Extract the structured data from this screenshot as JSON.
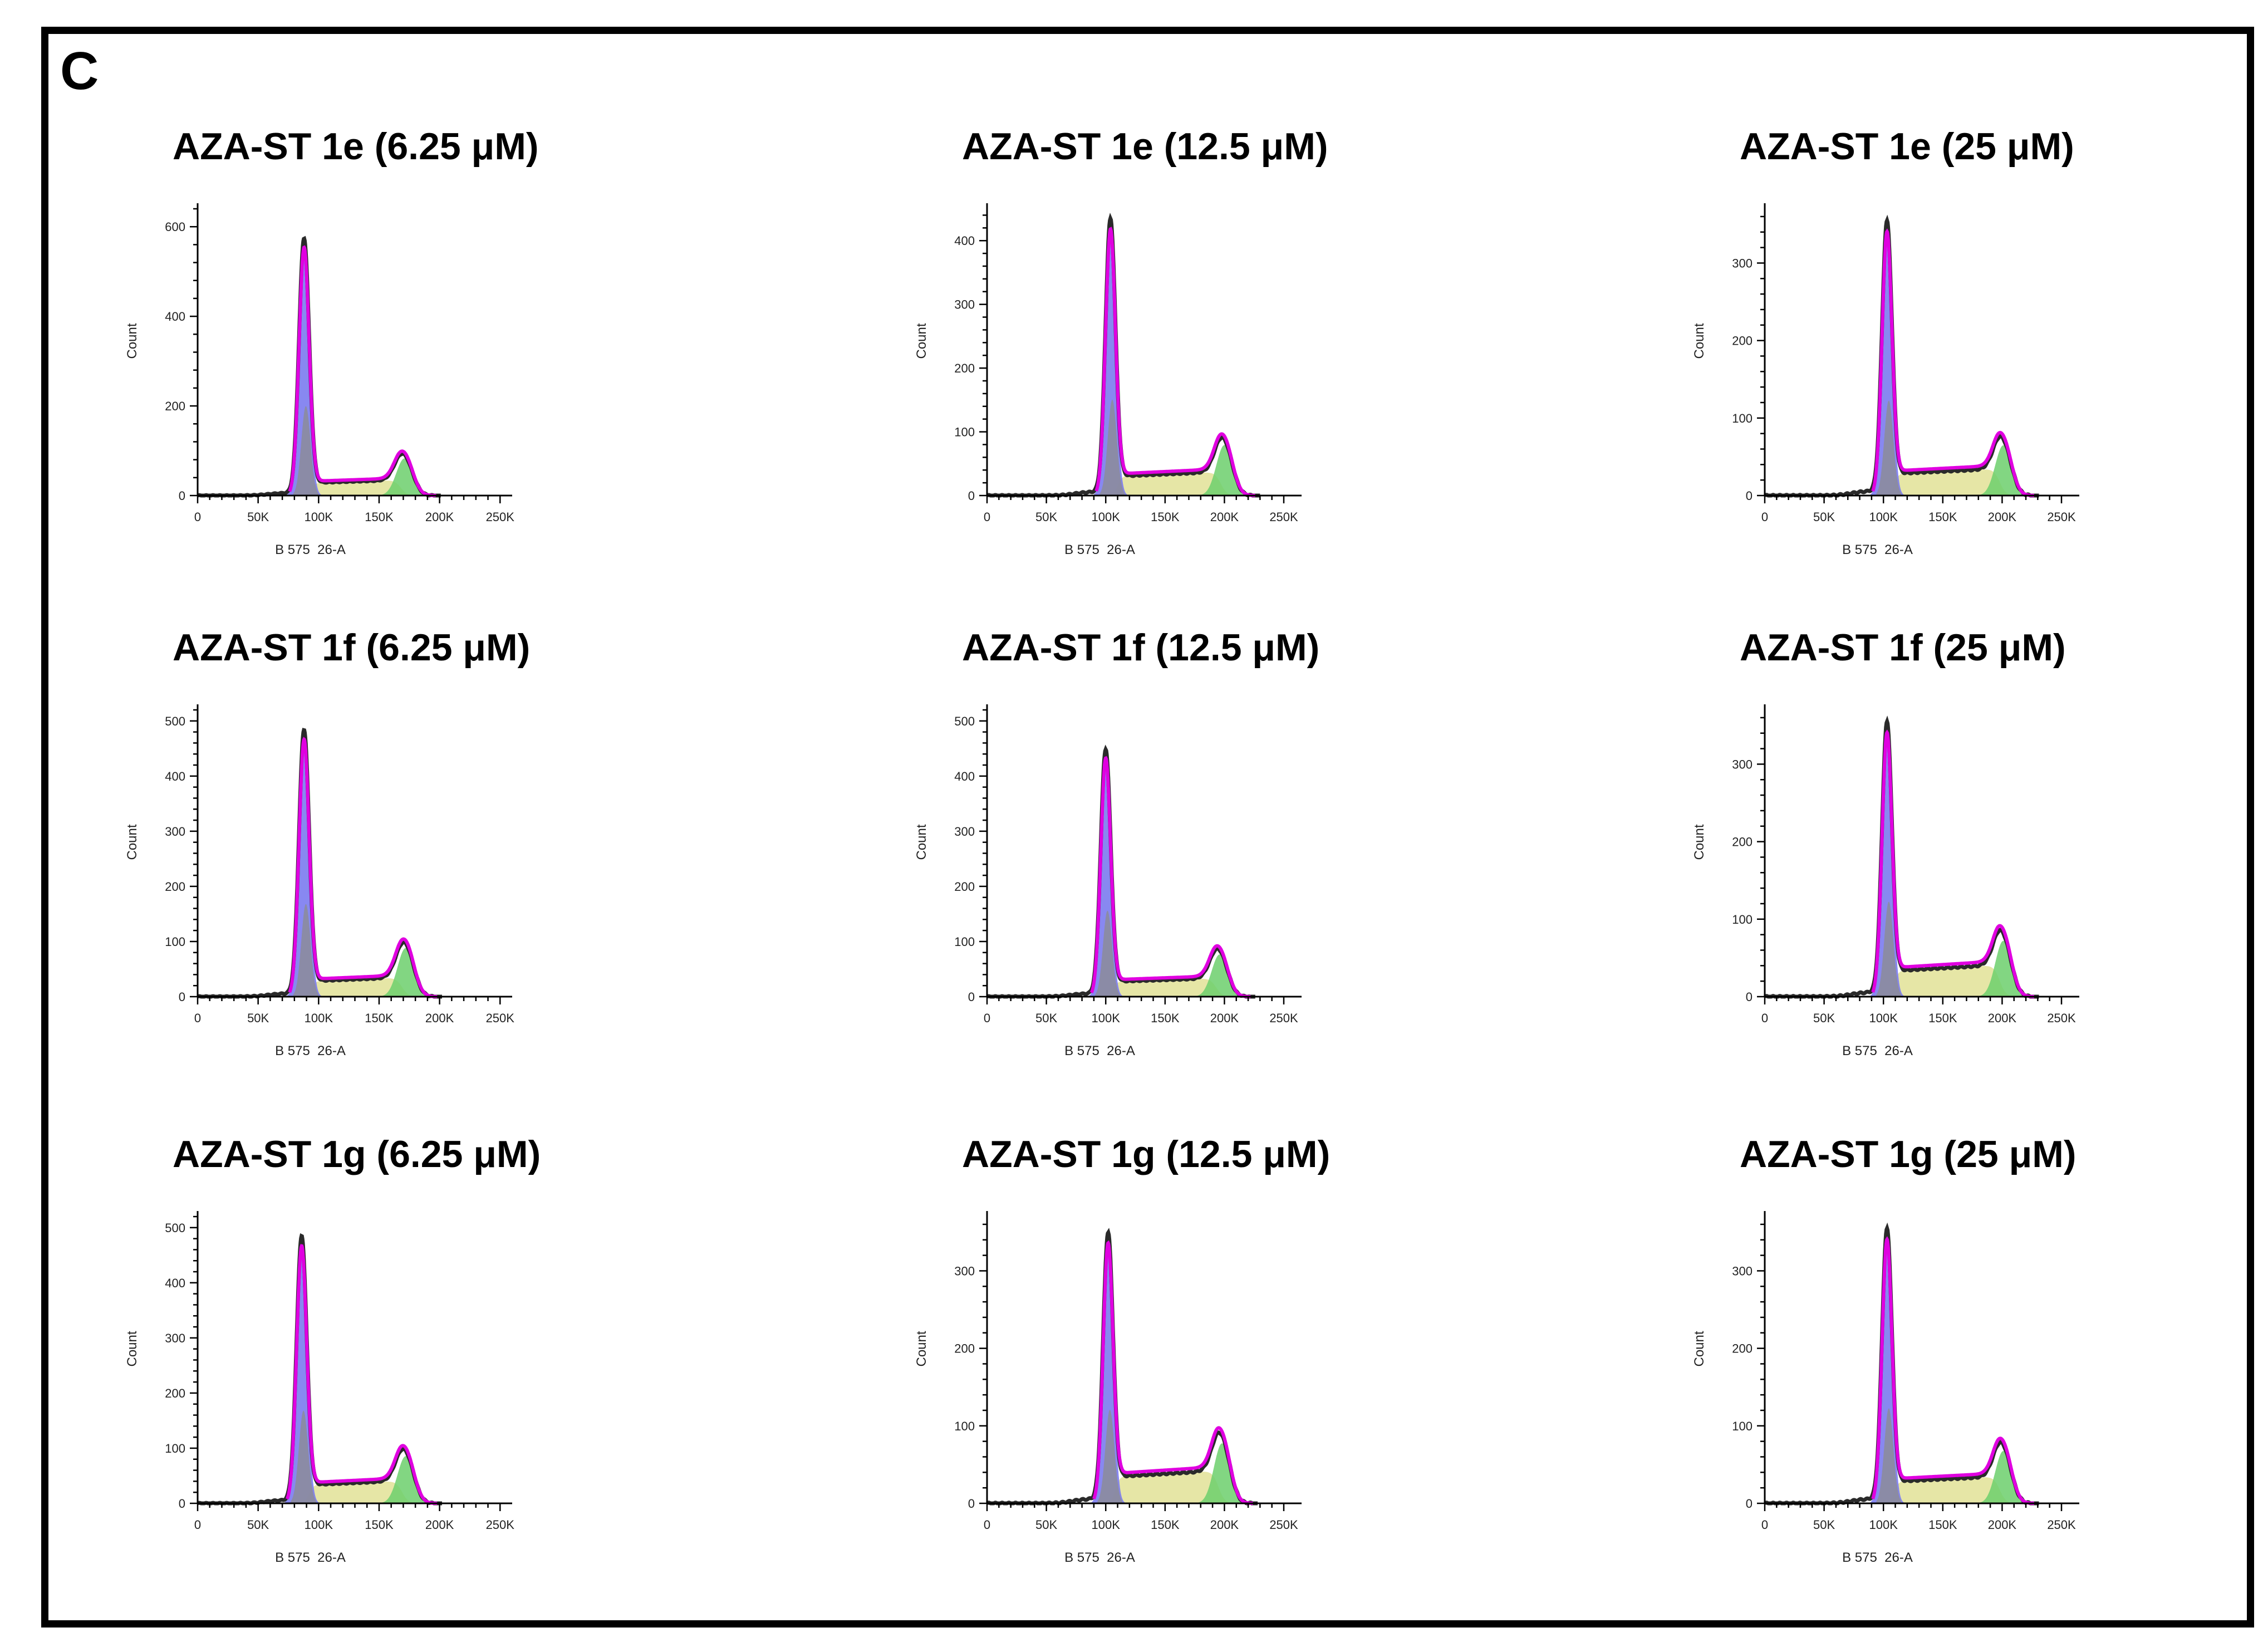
{
  "panel_label": "C",
  "colors": {
    "g1": "#7b7bf0",
    "s_phase": "#e6e6a6",
    "g2": "#6ccf6c",
    "dead": "#8c8c8c",
    "fit": "#e000e0",
    "data": "#2a2a2a"
  },
  "chart_data": [
    {
      "type": "area",
      "title": "AZA-ST 1e (6.25 μM)",
      "xlabel": "B 575  26-A",
      "ylabel": "Count",
      "x_ticks": [
        "0",
        "50K",
        "100K",
        "150K",
        "200K",
        "250K"
      ],
      "y_ticks": [
        "0",
        "200",
        "400",
        "600"
      ],
      "xlim": [
        0,
        260000
      ],
      "ylim": [
        0,
        640
      ],
      "g1_peak_x": 88000,
      "g1_peak_y": 570,
      "g2_peak_x": 171000,
      "g2_peak_y": 92,
      "s_phase_level": 28
    },
    {
      "type": "area",
      "title": "AZA-ST 1e (12.5 μM)",
      "xlabel": "B 575  26-A",
      "ylabel": "Count",
      "x_ticks": [
        "0",
        "50K",
        "100K",
        "150K",
        "200K",
        "250K"
      ],
      "y_ticks": [
        "0",
        "100",
        "200",
        "300",
        "400"
      ],
      "xlim": [
        0,
        265000
      ],
      "ylim": [
        0,
        450
      ],
      "g1_peak_x": 104000,
      "g1_peak_y": 430,
      "g2_peak_x": 200000,
      "g2_peak_y": 88,
      "s_phase_level": 30
    },
    {
      "type": "area",
      "title": "AZA-ST 1e (25 μM)",
      "xlabel": "B 575  26-A",
      "ylabel": "Count",
      "x_ticks": [
        "0",
        "50K",
        "100K",
        "150K",
        "200K",
        "250K"
      ],
      "y_ticks": [
        "0",
        "100",
        "200",
        "300"
      ],
      "xlim": [
        0,
        265000
      ],
      "ylim": [
        0,
        370
      ],
      "g1_peak_x": 103000,
      "g1_peak_y": 350,
      "g2_peak_x": 201000,
      "g2_peak_y": 72,
      "s_phase_level": 28
    },
    {
      "type": "area",
      "title": "AZA-ST 1f (6.25 μM)",
      "xlabel": "B 575  26-A",
      "ylabel": "Count",
      "x_ticks": [
        "0",
        "50K",
        "100K",
        "150K",
        "200K",
        "250K"
      ],
      "y_ticks": [
        "0",
        "100",
        "200",
        "300",
        "400",
        "500"
      ],
      "xlim": [
        0,
        260000
      ],
      "ylim": [
        0,
        520
      ],
      "g1_peak_x": 88000,
      "g1_peak_y": 480,
      "g2_peak_x": 172000,
      "g2_peak_y": 98,
      "s_phase_level": 28
    },
    {
      "type": "area",
      "title": "AZA-ST 1f (12.5 μM)",
      "xlabel": "B 575  26-A",
      "ylabel": "Count",
      "x_ticks": [
        "0",
        "50K",
        "100K",
        "150K",
        "200K",
        "250K"
      ],
      "y_ticks": [
        "0",
        "100",
        "200",
        "300",
        "400",
        "500"
      ],
      "xlim": [
        0,
        265000
      ],
      "ylim": [
        0,
        520
      ],
      "g1_peak_x": 100000,
      "g1_peak_y": 445,
      "g2_peak_x": 196000,
      "g2_peak_y": 85,
      "s_phase_level": 27
    },
    {
      "type": "area",
      "title": "AZA-ST 1f (25 μM)",
      "xlabel": "B 575  26-A",
      "ylabel": "Count",
      "x_ticks": [
        "0",
        "50K",
        "100K",
        "150K",
        "200K",
        "250K"
      ],
      "y_ticks": [
        "0",
        "100",
        "200",
        "300"
      ],
      "xlim": [
        0,
        265000
      ],
      "ylim": [
        0,
        370
      ],
      "g1_peak_x": 103000,
      "g1_peak_y": 350,
      "g2_peak_x": 201000,
      "g2_peak_y": 80,
      "s_phase_level": 33
    },
    {
      "type": "area",
      "title": "AZA-ST 1g (6.25 μM)",
      "xlabel": "B 575  26-A",
      "ylabel": "Count",
      "x_ticks": [
        "0",
        "50K",
        "100K",
        "150K",
        "200K",
        "250K"
      ],
      "y_ticks": [
        "0",
        "100",
        "200",
        "300",
        "400",
        "500"
      ],
      "xlim": [
        0,
        260000
      ],
      "ylim": [
        0,
        520
      ],
      "g1_peak_x": 86000,
      "g1_peak_y": 480,
      "g2_peak_x": 172000,
      "g2_peak_y": 95,
      "s_phase_level": 33
    },
    {
      "type": "area",
      "title": "AZA-ST 1g (12.5 μM)",
      "xlabel": "B 575  26-A",
      "ylabel": "Count",
      "x_ticks": [
        "0",
        "50K",
        "100K",
        "150K",
        "200K",
        "250K"
      ],
      "y_ticks": [
        "0",
        "100",
        "200",
        "300"
      ],
      "xlim": [
        0,
        265000
      ],
      "ylim": [
        0,
        370
      ],
      "g1_peak_x": 102000,
      "g1_peak_y": 345,
      "g2_peak_x": 198000,
      "g2_peak_y": 86,
      "s_phase_level": 34
    },
    {
      "type": "area",
      "title": "AZA-ST 1g (25 μM)",
      "xlabel": "B 575  26-A",
      "ylabel": "Count",
      "x_ticks": [
        "0",
        "50K",
        "100K",
        "150K",
        "200K",
        "250K"
      ],
      "y_ticks": [
        "0",
        "100",
        "200",
        "300"
      ],
      "xlim": [
        0,
        265000
      ],
      "ylim": [
        0,
        370
      ],
      "g1_peak_x": 103000,
      "g1_peak_y": 350,
      "g2_peak_x": 201000,
      "g2_peak_y": 75,
      "s_phase_level": 28
    }
  ]
}
